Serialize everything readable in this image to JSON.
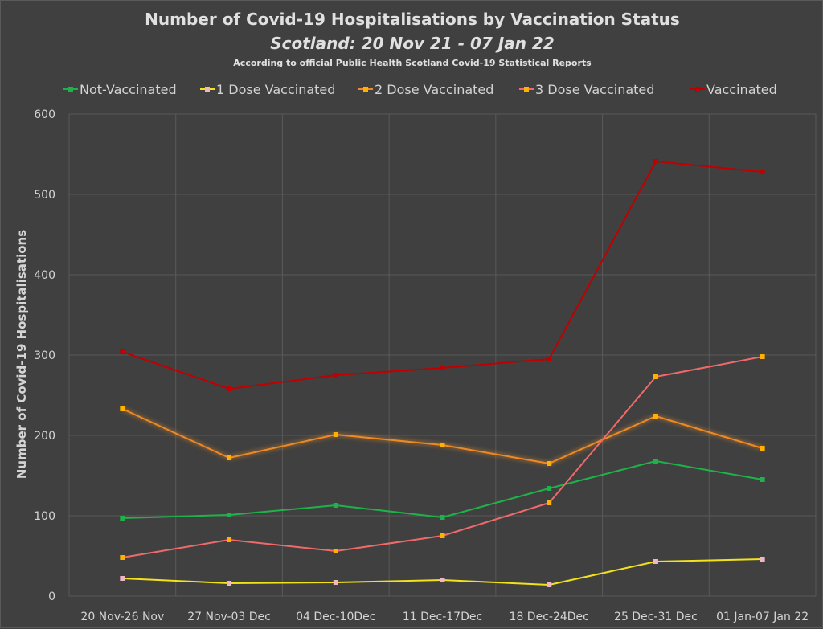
{
  "chart_data": {
    "type": "line",
    "title": "Number of Covid-19 Hospitalisations by Vaccination Status",
    "subtitle": "Scotland: 20 Nov 21 - 07 Jan 22",
    "note": "According to official Public Health Scotland Covid-19 Statistical Reports",
    "xlabel": "",
    "ylabel": "Number of Covid-19 Hospitalisations",
    "ylim": [
      0,
      600
    ],
    "yticks": [
      0,
      100,
      200,
      300,
      400,
      500,
      600
    ],
    "grid": true,
    "legend_position": "top",
    "categories": [
      "20 Nov-26 Nov",
      "27 Nov-03 Dec",
      "04 Dec-10Dec",
      "11 Dec-17Dec",
      "18 Dec-24Dec",
      "25 Dec-31 Dec",
      "01 Jan-07 Jan 22"
    ],
    "series": [
      {
        "name": "Not-Vaccinated",
        "color": "#1fb24a",
        "marker": "#1fb24a",
        "glow": false,
        "values": [
          97,
          101,
          113,
          98,
          134,
          168,
          145
        ]
      },
      {
        "name": "1 Dose Vaccinated",
        "color": "#f2e21a",
        "marker": "#f0b6c8",
        "glow": false,
        "values": [
          22,
          16,
          17,
          20,
          14,
          43,
          46
        ]
      },
      {
        "name": "2 Dose Vaccinated",
        "color": "#ed8a25",
        "marker": "#ffb000",
        "glow": true,
        "values": [
          233,
          172,
          201,
          188,
          165,
          224,
          184
        ]
      },
      {
        "name": "3 Dose Vaccinated",
        "color": "#f06a6a",
        "marker": "#ffb000",
        "glow": false,
        "values": [
          48,
          70,
          56,
          75,
          116,
          273,
          298
        ]
      },
      {
        "name": "Vaccinated",
        "color": "#c00000",
        "marker": "#c00000",
        "glow": false,
        "values": [
          304,
          258,
          275,
          284,
          295,
          541,
          528
        ]
      }
    ]
  }
}
